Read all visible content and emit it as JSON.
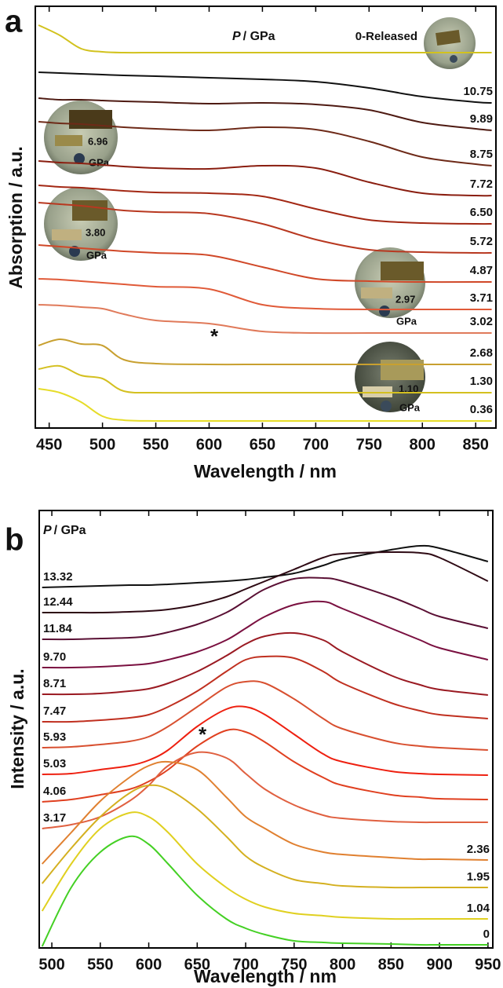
{
  "chart_data": [
    {
      "type": "line",
      "panel": "a",
      "xlabel": "Wavelength / nm",
      "ylabel": "Absorption / a.u.",
      "pressure_symbol": "P",
      "pressure_unit": "/ GPa",
      "annotation": "*",
      "xlim": [
        437,
        869
      ],
      "xticks": [
        450,
        500,
        550,
        600,
        650,
        700,
        750,
        800,
        850
      ],
      "ylim": [
        0,
        537
      ],
      "insets": [
        {
          "label": "6.96",
          "unit": "GPa"
        },
        {
          "label": "3.80",
          "unit": "GPa"
        },
        {
          "label": "2.97",
          "unit": "GPa"
        },
        {
          "label": "1.10",
          "unit": "GPa"
        }
      ],
      "x": [
        440,
        460,
        480,
        500,
        520,
        550,
        600,
        650,
        700,
        750,
        800,
        850,
        865
      ],
      "series": [
        {
          "name": "0-Released",
          "color": "#d2c21e",
          "values": [
            513,
            500,
            483,
            479,
            478,
            478,
            478,
            478,
            478,
            478,
            478,
            478,
            478
          ]
        },
        {
          "name": "10.75",
          "color": "#111111",
          "values": [
            453,
            452,
            451,
            450,
            449,
            448,
            446,
            444,
            441,
            433,
            422,
            415,
            414
          ]
        },
        {
          "name": "9.89",
          "color": "#4e1a12",
          "values": [
            420,
            418,
            418,
            417,
            416,
            415,
            413,
            414,
            412,
            405,
            389,
            381,
            379
          ]
        },
        {
          "name": "8.75",
          "color": "#6e2a18",
          "values": [
            390,
            388,
            387,
            385,
            383,
            381,
            379,
            383,
            380,
            365,
            345,
            336,
            334
          ]
        },
        {
          "name": "7.72",
          "color": "#8a1e10",
          "values": [
            340,
            338,
            337,
            335,
            333,
            331,
            330,
            334,
            331,
            313,
            299,
            296,
            296
          ]
        },
        {
          "name": "6.50",
          "color": "#a32814",
          "values": [
            309,
            307,
            306,
            304,
            302,
            300,
            299,
            295,
            279,
            265,
            261,
            260,
            260
          ]
        },
        {
          "name": "5.72",
          "color": "#b83820",
          "values": [
            287,
            285,
            283,
            280,
            277,
            275,
            273,
            260,
            240,
            227,
            224,
            223,
            223
          ]
        },
        {
          "name": "4.87",
          "color": "#d04828",
          "values": [
            233,
            231,
            229,
            227,
            225,
            223,
            220,
            205,
            190,
            187,
            186,
            186,
            186
          ]
        },
        {
          "name": "3.71",
          "color": "#e05a38",
          "values": [
            190,
            189,
            187,
            185,
            183,
            180,
            177,
            157,
            152,
            151,
            151,
            151,
            151
          ]
        },
        {
          "name": "3.02",
          "color": "#e07a5a",
          "values": [
            157,
            156,
            154,
            152,
            145,
            137,
            133,
            123,
            121,
            121,
            121,
            121,
            121
          ]
        },
        {
          "name": "2.68",
          "color": "#c8a030",
          "values": [
            105,
            113,
            107,
            105,
            87,
            82,
            81,
            81,
            81,
            81,
            81,
            81,
            81
          ]
        },
        {
          "name": "1.30",
          "color": "#d4c020",
          "values": [
            75,
            79,
            67,
            63,
            47,
            45,
            45,
            45,
            45,
            45,
            45,
            45,
            45
          ]
        },
        {
          "name": "0.36",
          "color": "#e6dc28",
          "values": [
            50,
            45,
            33,
            15,
            10,
            9,
            9,
            9,
            9,
            9,
            9,
            9,
            9
          ]
        }
      ]
    },
    {
      "type": "line",
      "panel": "b",
      "xlabel": "Wavelength / nm",
      "ylabel": "Intensity / a.u.",
      "pressure_symbol": "P",
      "pressure_unit": "/ GPa",
      "annotation": "*",
      "xlim": [
        487,
        955
      ],
      "xticks": [
        500,
        550,
        600,
        650,
        700,
        750,
        800,
        850,
        900,
        950
      ],
      "ylim": [
        0,
        557
      ],
      "x": [
        490,
        520,
        550,
        580,
        600,
        620,
        650,
        680,
        700,
        720,
        750,
        780,
        800,
        850,
        880,
        900,
        950
      ],
      "series": [
        {
          "name": "13.32",
          "color": "#111111",
          "values": [
            459,
            460,
            461,
            462,
            462,
            463,
            465,
            467,
            469,
            472,
            477,
            487,
            495,
            507,
            512,
            509,
            492
          ]
        },
        {
          "name": "12.44",
          "color": "#2e0a14",
          "values": [
            427,
            427,
            427,
            428,
            429,
            431,
            437,
            447,
            457,
            467,
            482,
            497,
            502,
            504,
            503,
            497,
            467
          ]
        },
        {
          "name": "11.84",
          "color": "#5a1034",
          "values": [
            393,
            393,
            394,
            395,
            397,
            402,
            412,
            427,
            442,
            457,
            470,
            471,
            467,
            447,
            432,
            422,
            407
          ]
        },
        {
          "name": "9.70",
          "color": "#7a1040",
          "values": [
            357,
            357,
            358,
            360,
            362,
            367,
            377,
            392,
            407,
            422,
            437,
            441,
            432,
            407,
            392,
            382,
            367
          ]
        },
        {
          "name": "8.71",
          "color": "#9a1a22",
          "values": [
            323,
            323,
            324,
            327,
            330,
            337,
            352,
            372,
            387,
            397,
            401,
            392,
            377,
            347,
            335,
            329,
            322
          ]
        },
        {
          "name": "7.47",
          "color": "#c03020",
          "values": [
            288,
            288,
            290,
            293,
            297,
            307,
            327,
            352,
            367,
            371,
            369,
            352,
            337,
            312,
            302,
            297,
            292
          ]
        },
        {
          "name": "5.93",
          "color": "#d85030",
          "values": [
            255,
            256,
            259,
            263,
            269,
            282,
            307,
            332,
            339,
            337,
            317,
            292,
            279,
            262,
            257,
            255,
            252
          ]
        },
        {
          "name": "5.03",
          "color": "#ee2010",
          "values": [
            221,
            222,
            227,
            232,
            239,
            252,
            282,
            304,
            307,
            297,
            272,
            247,
            237,
            225,
            222,
            221,
            220
          ]
        },
        {
          "name": "4.06",
          "color": "#e04020",
          "values": [
            186,
            189,
            195,
            202,
            212,
            227,
            257,
            277,
            275,
            262,
            237,
            217,
            207,
            195,
            192,
            190,
            189
          ]
        },
        {
          "name": "3.17",
          "color": "#e06040",
          "values": [
            152,
            157,
            167,
            187,
            207,
            232,
            249,
            242,
            222,
            202,
            182,
            169,
            165,
            161,
            160,
            160,
            160
          ]
        },
        {
          "name": "2.36",
          "color": "#e08030",
          "values": [
            107,
            147,
            187,
            217,
            232,
            237,
            227,
            192,
            167,
            152,
            132,
            122,
            119,
            115,
            113,
            113,
            112
          ]
        },
        {
          "name": "1.95",
          "color": "#d4b020",
          "values": [
            82,
            127,
            167,
            197,
            207,
            202,
            177,
            142,
            117,
            102,
            87,
            82,
            79,
            77,
            77,
            77,
            77
          ]
        },
        {
          "name": "1.04",
          "color": "#e0d020",
          "values": [
            47,
            107,
            152,
            172,
            167,
            147,
            107,
            77,
            62,
            52,
            44,
            41,
            39,
            37,
            37,
            37,
            37
          ]
        },
        {
          "name": "0",
          "color": "#44d024",
          "values": [
            2,
            77,
            122,
            142,
            132,
            107,
            67,
            37,
            25,
            17,
            9,
            7,
            6,
            5,
            4,
            4,
            4
          ]
        }
      ]
    }
  ]
}
